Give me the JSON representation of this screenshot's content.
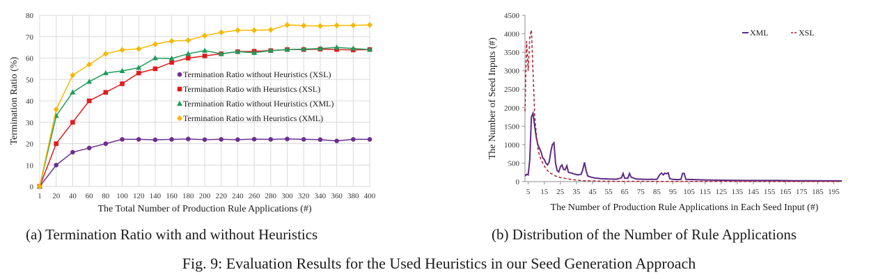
{
  "chart_data": [
    {
      "type": "line",
      "title": "",
      "xlabel": "The Total Number of Production Rule Applications (#)",
      "ylabel": "Termination Ratio (%)",
      "x": [
        1,
        20,
        40,
        60,
        80,
        100,
        120,
        140,
        160,
        180,
        200,
        220,
        240,
        260,
        280,
        300,
        320,
        340,
        360,
        380,
        400
      ],
      "x_ticks": [
        "1",
        "20",
        "40",
        "60",
        "80",
        "100",
        "120",
        "140",
        "160",
        "180",
        "200",
        "220",
        "240",
        "260",
        "280",
        "300",
        "320",
        "340",
        "360",
        "380",
        "400"
      ],
      "ylim": [
        0,
        80
      ],
      "y_ticks": [
        "0",
        "10",
        "20",
        "30",
        "40",
        "50",
        "60",
        "70",
        "80"
      ],
      "grid": true,
      "legend_position": "center-right",
      "series": [
        {
          "name": "Termination Ratio without Heuristics (XSL)",
          "color": "#6b2f8f",
          "marker": "circle",
          "values": [
            0,
            10,
            16,
            18,
            20,
            22,
            22,
            21.8,
            22,
            22.2,
            21.9,
            22,
            21.9,
            22.1,
            22,
            22.2,
            22,
            21.9,
            21.3,
            22,
            22
          ]
        },
        {
          "name": "Termination Ratio with Heuristics (XSL)",
          "color": "#e31a1c",
          "marker": "square",
          "values": [
            0,
            20,
            30,
            40,
            44,
            48,
            53,
            55,
            58,
            60,
            61,
            62,
            63,
            63.2,
            63.5,
            64,
            64,
            64.2,
            64,
            63.8,
            64
          ]
        },
        {
          "name": "Termination Ratio without Heuristics (XML)",
          "color": "#1f9a5a",
          "marker": "triangle",
          "values": [
            0,
            33,
            44,
            49,
            53,
            54,
            55.5,
            60,
            59.8,
            62,
            63.5,
            62,
            63,
            62.5,
            63.5,
            64,
            64.2,
            64.5,
            65,
            64.5,
            64
          ]
        },
        {
          "name": "Termination Ratio with Heuristics (XML)",
          "color": "#f5b800",
          "marker": "diamond",
          "values": [
            0,
            36,
            52,
            57,
            62,
            63.8,
            64.3,
            66.5,
            68,
            68.3,
            70.5,
            72,
            73,
            73,
            73.2,
            75.5,
            75.2,
            75,
            75.3,
            75.3,
            75.5
          ]
        }
      ]
    },
    {
      "type": "line",
      "title": "",
      "xlabel": "The Number of Production Rule Applications in Each Seed Input (#)",
      "ylabel": "The Number  of Seed Inputs (#)",
      "xlim": [
        3,
        200
      ],
      "ylim": [
        0,
        4500
      ],
      "x_ticks": [
        5,
        15,
        25,
        35,
        45,
        55,
        65,
        75,
        85,
        95,
        105,
        115,
        125,
        135,
        145,
        155,
        165,
        175,
        185,
        195
      ],
      "y_ticks": [
        0,
        500,
        1000,
        1500,
        2000,
        2500,
        3000,
        3500,
        4000,
        4500
      ],
      "grid": false,
      "legend_position": "top-right",
      "series": [
        {
          "name": "XML",
          "color": "#5b2a86",
          "style": "solid",
          "points": [
            [
              3,
              150
            ],
            [
              4,
              200
            ],
            [
              5,
              180
            ],
            [
              6,
              600
            ],
            [
              7,
              1750
            ],
            [
              8,
              1850
            ],
            [
              9,
              1500
            ],
            [
              10,
              1200
            ],
            [
              11,
              1000
            ],
            [
              12,
              900
            ],
            [
              13,
              800
            ],
            [
              14,
              650
            ],
            [
              15,
              600
            ],
            [
              16,
              500
            ],
            [
              17,
              450
            ],
            [
              18,
              520
            ],
            [
              19,
              800
            ],
            [
              20,
              1000
            ],
            [
              21,
              1050
            ],
            [
              22,
              500
            ],
            [
              23,
              300
            ],
            [
              24,
              260
            ],
            [
              25,
              400
            ],
            [
              26,
              450
            ],
            [
              27,
              330
            ],
            [
              28,
              320
            ],
            [
              29,
              430
            ],
            [
              30,
              250
            ],
            [
              32,
              230
            ],
            [
              34,
              200
            ],
            [
              36,
              180
            ],
            [
              38,
              200
            ],
            [
              39,
              330
            ],
            [
              40,
              520
            ],
            [
              41,
              300
            ],
            [
              42,
              150
            ],
            [
              44,
              120
            ],
            [
              46,
              100
            ],
            [
              50,
              80
            ],
            [
              55,
              70
            ],
            [
              60,
              65
            ],
            [
              63,
              100
            ],
            [
              64,
              220
            ],
            [
              65,
              90
            ],
            [
              67,
              90
            ],
            [
              68,
              220
            ],
            [
              69,
              120
            ],
            [
              72,
              70
            ],
            [
              78,
              60
            ],
            [
              85,
              60
            ],
            [
              87,
              200
            ],
            [
              88,
              230
            ],
            [
              89,
              180
            ],
            [
              90,
              230
            ],
            [
              91,
              210
            ],
            [
              92,
              240
            ],
            [
              93,
              80
            ],
            [
              95,
              60
            ],
            [
              98,
              55
            ],
            [
              100,
              60
            ],
            [
              101,
              220
            ],
            [
              102,
              220
            ],
            [
              103,
              60
            ],
            [
              110,
              50
            ],
            [
              120,
              40
            ],
            [
              130,
              35
            ],
            [
              140,
              30
            ],
            [
              150,
              30
            ],
            [
              160,
              30
            ],
            [
              170,
              25
            ],
            [
              180,
              25
            ],
            [
              190,
              20
            ],
            [
              200,
              20
            ]
          ]
        },
        {
          "name": "XSL",
          "color": "#b2182b",
          "style": "dashed",
          "points": [
            [
              3,
              1900
            ],
            [
              4,
              3800
            ],
            [
              5,
              3000
            ],
            [
              6,
              3900
            ],
            [
              7,
              4100
            ],
            [
              8,
              3000
            ],
            [
              9,
              1800
            ],
            [
              10,
              1300
            ],
            [
              11,
              900
            ],
            [
              12,
              700
            ],
            [
              14,
              500
            ],
            [
              16,
              350
            ],
            [
              18,
              250
            ],
            [
              20,
              200
            ],
            [
              22,
              150
            ],
            [
              25,
              110
            ],
            [
              30,
              70
            ],
            [
              35,
              40
            ],
            [
              40,
              25
            ],
            [
              50,
              12
            ],
            [
              60,
              8
            ],
            [
              80,
              5
            ],
            [
              120,
              3
            ],
            [
              200,
              2
            ]
          ]
        }
      ]
    }
  ],
  "captions": {
    "a": "(a) Termination Ratio with and without Heuristics",
    "b": "(b) Distribution of the Number of Rule Applications",
    "figure": "Fig. 9: Evaluation Results for the Used Heuristics in our Seed Generation Approach"
  }
}
